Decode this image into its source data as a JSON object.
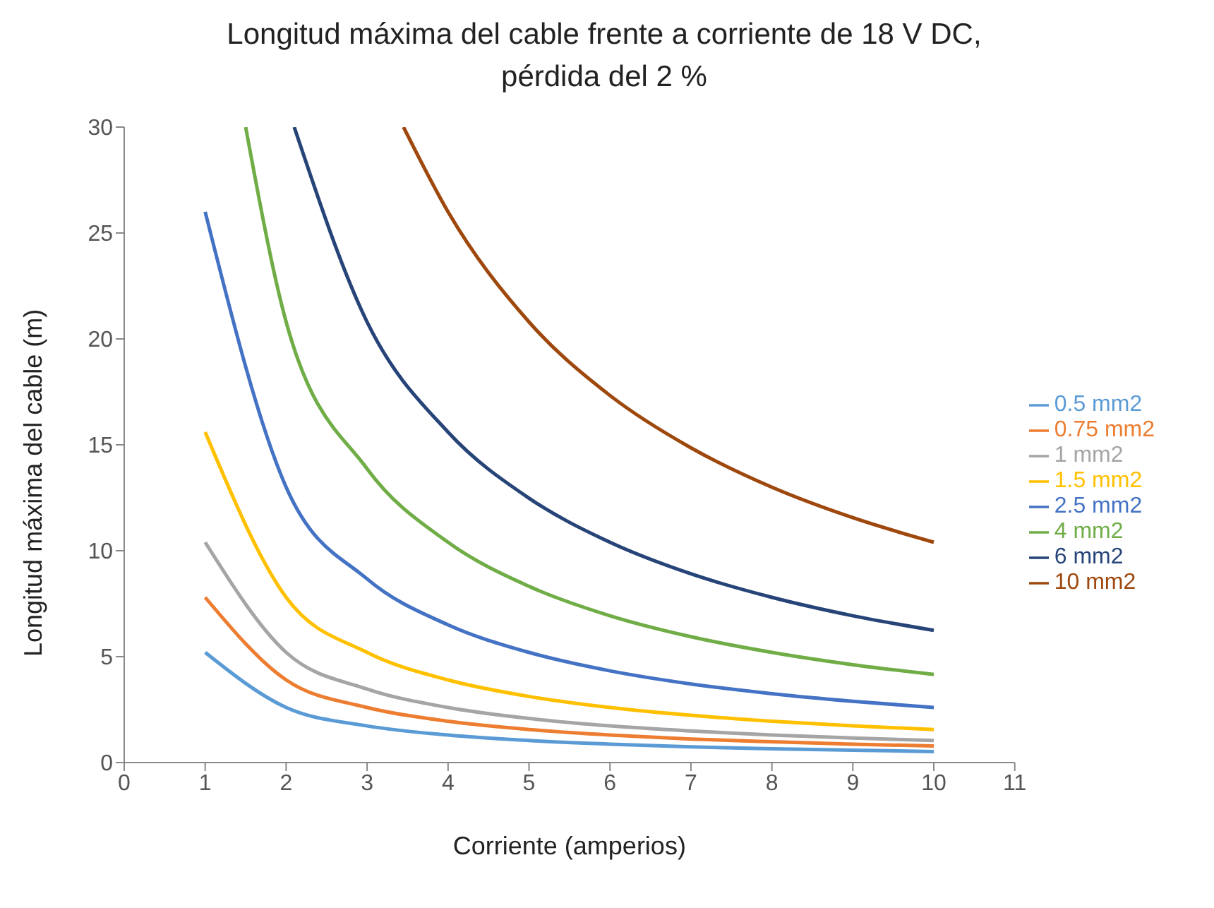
{
  "chart_data": {
    "type": "line",
    "title": "Longitud máxima del cable frente a corriente de 18 V DC, pérdida del 2 %",
    "xlabel": "Corriente (amperios)",
    "ylabel": "Longitud máxima del cable (m)",
    "xlim": [
      0,
      11
    ],
    "xticks": [
      0,
      1,
      2,
      3,
      4,
      5,
      6,
      7,
      8,
      9,
      10,
      11
    ],
    "ylim": [
      0,
      30
    ],
    "yticks": [
      0,
      5,
      10,
      15,
      20,
      25,
      30
    ],
    "grid": false,
    "legend": "right",
    "marker": "none",
    "line_style": "solid",
    "series": [
      {
        "name": "0.5 mm2",
        "color": "#5b9bd5",
        "x": [
          1,
          2,
          3,
          4,
          5,
          6,
          7,
          8,
          9,
          10
        ],
        "values": [
          5.2,
          2.6,
          1.73,
          1.3,
          1.04,
          0.87,
          0.74,
          0.65,
          0.58,
          0.52
        ]
      },
      {
        "name": "0.75 mm2",
        "color": "#ed7d31",
        "x": [
          1,
          2,
          3,
          4,
          5,
          6,
          7,
          8,
          9,
          10
        ],
        "values": [
          7.8,
          3.9,
          2.6,
          1.95,
          1.56,
          1.3,
          1.11,
          0.98,
          0.87,
          0.78
        ]
      },
      {
        "name": "1 mm2",
        "color": "#a5a5a5",
        "x": [
          1,
          2,
          3,
          4,
          5,
          6,
          7,
          8,
          9,
          10
        ],
        "values": [
          10.4,
          5.2,
          3.47,
          2.6,
          2.08,
          1.73,
          1.49,
          1.3,
          1.16,
          1.04
        ]
      },
      {
        "name": "1.5 mm2",
        "color": "#ffc000",
        "x": [
          1,
          2,
          3,
          4,
          5,
          6,
          7,
          8,
          9,
          10
        ],
        "values": [
          15.6,
          7.8,
          5.2,
          3.9,
          3.12,
          2.6,
          2.23,
          1.95,
          1.73,
          1.56
        ]
      },
      {
        "name": "2.5 mm2",
        "color": "#4472c4",
        "x": [
          1,
          2,
          3,
          4,
          5,
          6,
          7,
          8,
          9,
          10
        ],
        "values": [
          26,
          13,
          8.67,
          6.5,
          5.2,
          4.33,
          3.71,
          3.25,
          2.89,
          2.6
        ]
      },
      {
        "name": "4 mm2",
        "color": "#70ad47",
        "x": [
          1.5,
          2,
          3,
          4,
          5,
          6,
          7,
          8,
          9,
          10
        ],
        "values": [
          30,
          20.8,
          13.87,
          10.4,
          8.32,
          6.93,
          5.94,
          5.2,
          4.62,
          4.16
        ]
      },
      {
        "name": "6 mm2",
        "color": "#264478",
        "x": [
          2.1,
          3,
          4,
          5,
          6,
          7,
          8,
          9,
          10
        ],
        "values": [
          30,
          20.8,
          15.6,
          12.48,
          10.4,
          8.91,
          7.8,
          6.93,
          6.24
        ]
      },
      {
        "name": "10 mm2",
        "color": "#9e480e",
        "x": [
          3.45,
          4,
          5,
          6,
          7,
          8,
          9,
          10
        ],
        "values": [
          30,
          26,
          20.8,
          17.33,
          14.86,
          13,
          11.56,
          10.4
        ]
      }
    ]
  }
}
